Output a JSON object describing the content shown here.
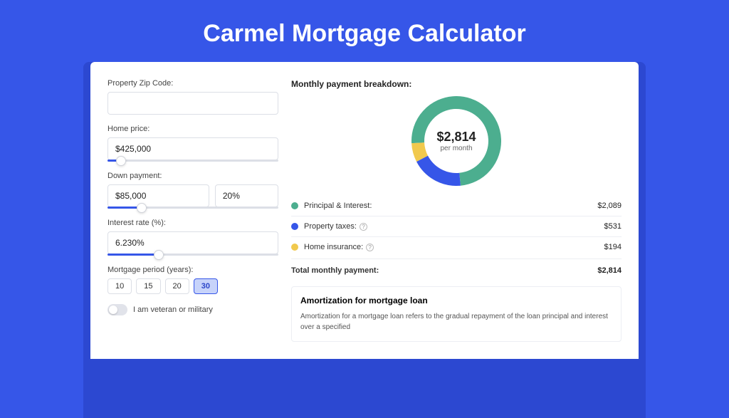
{
  "title": "Carmel Mortgage Calculator",
  "form": {
    "zip": {
      "label": "Property Zip Code:",
      "value": ""
    },
    "price": {
      "label": "Home price:",
      "value": "$425,000",
      "slider_pct": 8
    },
    "down": {
      "label": "Down payment:",
      "value": "$85,000",
      "pct_value": "20%",
      "slider_pct": 20
    },
    "rate": {
      "label": "Interest rate (%):",
      "value": "6.230%",
      "slider_pct": 30
    },
    "period": {
      "label": "Mortgage period (years):",
      "options": [
        "10",
        "15",
        "20",
        "30"
      ],
      "selected_index": 3
    },
    "veteran": {
      "label": "I am veteran or military",
      "on": false
    }
  },
  "breakdown": {
    "title": "Monthly payment breakdown:",
    "center_amount": "$2,814",
    "center_sub": "per month",
    "donut": {
      "radius_outer": 63,
      "stroke_width": 18,
      "segments": [
        {
          "label": "Principal & Interest:",
          "value": "$2,089",
          "color": "#4cae8f",
          "pct": 74.2,
          "has_info": false
        },
        {
          "label": "Property taxes:",
          "value": "$531",
          "color": "#3656e8",
          "pct": 18.9,
          "has_info": true
        },
        {
          "label": "Home insurance:",
          "value": "$194",
          "color": "#f1c94d",
          "pct": 6.9,
          "has_info": true
        }
      ]
    },
    "total": {
      "label": "Total monthly payment:",
      "value": "$2,814"
    }
  },
  "amortization": {
    "title": "Amortization for mortgage loan",
    "text": "Amortization for a mortgage loan refers to the gradual repayment of the loan principal and interest over a specified"
  },
  "colors": {
    "page_bg": "#3656e8",
    "card_shadow": "#2c48d1",
    "card_bg": "#ffffff",
    "input_border": "#dcdfe6",
    "slider_fill": "#3656e8",
    "period_active_bg": "#c7d3fa",
    "divider": "#eceef3"
  }
}
